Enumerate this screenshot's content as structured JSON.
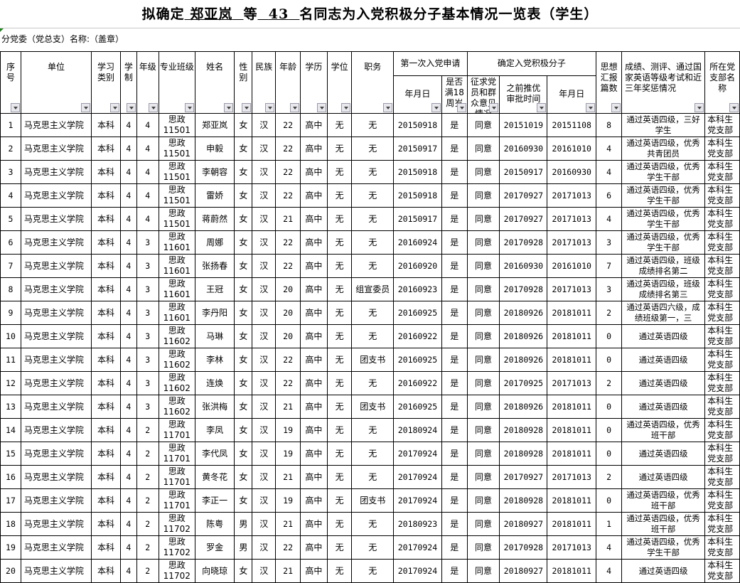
{
  "title": {
    "prefix": "拟确定",
    "name": "郑亚岚",
    "mid": "等",
    "count": "43",
    "suffix": "名同志为入党积极分子基本情况一览表（学生）"
  },
  "subheader": "分党委（党总支）名称:（盖章）",
  "headers": {
    "seq": "序号",
    "unit": "单位",
    "study_type": "学习类别",
    "duration": "学制",
    "grade": "年级",
    "class": "专业班级",
    "name": "姓名",
    "gender": "性别",
    "ethnicity": "民族",
    "age": "年龄",
    "education": "学历",
    "degree": "学位",
    "position": "职务",
    "first_app": "第一次入党申请",
    "first_app_date": "年月日",
    "over18": "是否满18周岁",
    "confirm": "确定入党积极分子",
    "opinion": "征求党员和群众意见情况",
    "prior_approval": "之前推优审批时间",
    "confirm_date": "年月日",
    "reports": "思想汇报篇数",
    "awards": "成绩、测评、通过国家英语等级考试和近三年奖惩情况",
    "branch": "所在党支部名称"
  },
  "rows": [
    [
      "1",
      "马克思主义学院",
      "本科",
      "4",
      "4",
      "思政11501",
      "郑亚岚",
      "女",
      "汉",
      "22",
      "高中",
      "无",
      "无",
      "20150918",
      "是",
      "同意",
      "20151019",
      "20151108",
      "8",
      "通过英语四级，三好学生",
      "本科生党支部"
    ],
    [
      "2",
      "马克思主义学院",
      "本科",
      "4",
      "4",
      "思政11501",
      "申毅",
      "女",
      "汉",
      "22",
      "高中",
      "无",
      "无",
      "20150917",
      "是",
      "同意",
      "20160930",
      "20161010",
      "4",
      "通过英语四级，优秀共青团员",
      "本科生党支部"
    ],
    [
      "3",
      "马克思主义学院",
      "本科",
      "4",
      "4",
      "思政11501",
      "李朝容",
      "女",
      "汉",
      "22",
      "高中",
      "无",
      "无",
      "20150918",
      "是",
      "同意",
      "20150917",
      "20160930",
      "4",
      "通过英语四级，优秀学生干部",
      "本科生党支部"
    ],
    [
      "4",
      "马克思主义学院",
      "本科",
      "4",
      "4",
      "思政11501",
      "雷娇",
      "女",
      "汉",
      "22",
      "高中",
      "无",
      "无",
      "20150918",
      "是",
      "同意",
      "20170927",
      "20171013",
      "6",
      "通过英语四级，优秀学生干部",
      "本科生党支部"
    ],
    [
      "5",
      "马克思主义学院",
      "本科",
      "4",
      "4",
      "思政11501",
      "蒋蔚然",
      "女",
      "汉",
      "21",
      "高中",
      "无",
      "无",
      "20150917",
      "是",
      "同意",
      "20170927",
      "20171013",
      "4",
      "通过英语四级，优秀学生干部",
      "本科生党支部"
    ],
    [
      "6",
      "马克思主义学院",
      "本科",
      "4",
      "3",
      "思政11601",
      "周娜",
      "女",
      "汉",
      "22",
      "高中",
      "无",
      "无",
      "20160924",
      "是",
      "同意",
      "20170928",
      "20171013",
      "3",
      "通过英语四级，优秀学生干部",
      "本科生党支部"
    ],
    [
      "7",
      "马克思主义学院",
      "本科",
      "4",
      "3",
      "思政11601",
      "张扬春",
      "女",
      "汉",
      "22",
      "高中",
      "无",
      "无",
      "20160920",
      "是",
      "同意",
      "20160930",
      "20161010",
      "7",
      "通过英语四级，班级成绩排名第二",
      "本科生党支部"
    ],
    [
      "8",
      "马克思主义学院",
      "本科",
      "4",
      "3",
      "思政11601",
      "王冠",
      "女",
      "汉",
      "20",
      "高中",
      "无",
      "组宣委员",
      "20160923",
      "是",
      "同意",
      "20170928",
      "20171013",
      "3",
      "通过英语四级，班级成绩排名第三",
      "本科生党支部"
    ],
    [
      "9",
      "马克思主义学院",
      "本科",
      "4",
      "3",
      "思政11601",
      "李丹阳",
      "女",
      "汉",
      "20",
      "高中",
      "无",
      "无",
      "20160925",
      "是",
      "同意",
      "20180926",
      "20181011",
      "2",
      "通过英语四六级，成绩班级第一，三",
      "本科生党支部"
    ],
    [
      "10",
      "马克思主义学院",
      "本科",
      "4",
      "3",
      "思政11602",
      "马琳",
      "女",
      "汉",
      "20",
      "高中",
      "无",
      "无",
      "20160922",
      "是",
      "同意",
      "20180926",
      "20181011",
      "0",
      "通过英语四级",
      "本科生党支部"
    ],
    [
      "11",
      "马克思主义学院",
      "本科",
      "4",
      "3",
      "思政11602",
      "李林",
      "女",
      "汉",
      "22",
      "高中",
      "无",
      "团支书",
      "20160925",
      "是",
      "同意",
      "20180926",
      "20181011",
      "0",
      "通过英语四级",
      "本科生党支部"
    ],
    [
      "12",
      "马克思主义学院",
      "本科",
      "4",
      "3",
      "思政11602",
      "连焕",
      "女",
      "汉",
      "22",
      "高中",
      "无",
      "无",
      "20160922",
      "是",
      "同意",
      "20170925",
      "20171013",
      "2",
      "通过英语四级",
      "本科生党支部"
    ],
    [
      "13",
      "马克思主义学院",
      "本科",
      "4",
      "3",
      "思政11602",
      "张洪梅",
      "女",
      "汉",
      "21",
      "高中",
      "无",
      "团支书",
      "20160925",
      "是",
      "同意",
      "20180926",
      "20181011",
      "0",
      "通过英语四级",
      "本科生党支部"
    ],
    [
      "14",
      "马克思主义学院",
      "本科",
      "4",
      "2",
      "思政11701",
      "李凤",
      "女",
      "汉",
      "19",
      "高中",
      "无",
      "无",
      "20180924",
      "是",
      "同意",
      "20180928",
      "20181011",
      "0",
      "通过英语四级，优秀班干部",
      "本科生党支部"
    ],
    [
      "15",
      "马克思主义学院",
      "本科",
      "4",
      "2",
      "思政11701",
      "李代凤",
      "女",
      "汉",
      "19",
      "高中",
      "无",
      "无",
      "20170924",
      "是",
      "同意",
      "20180928",
      "20181011",
      "0",
      "通过英语四级",
      "本科生党支部"
    ],
    [
      "16",
      "马克思主义学院",
      "本科",
      "4",
      "2",
      "思政11701",
      "黄冬花",
      "女",
      "汉",
      "21",
      "高中",
      "无",
      "无",
      "20170924",
      "是",
      "同意",
      "20170927",
      "20171013",
      "2",
      "通过英语四级",
      "本科生党支部"
    ],
    [
      "17",
      "马克思主义学院",
      "本科",
      "4",
      "2",
      "思政11701",
      "李正一",
      "女",
      "汉",
      "19",
      "高中",
      "无",
      "团支书",
      "20170924",
      "是",
      "同意",
      "20180928",
      "20181011",
      "0",
      "通过英语四级，优秀班干部",
      "本科生党支部"
    ],
    [
      "18",
      "马克思主义学院",
      "本科",
      "4",
      "2",
      "思政11702",
      "陈粤",
      "男",
      "汉",
      "21",
      "高中",
      "无",
      "无",
      "20180923",
      "是",
      "同意",
      "20180927",
      "20181011",
      "1",
      "通过英语四级，优秀班干部",
      "本科生党支部"
    ],
    [
      "19",
      "马克思主义学院",
      "本科",
      "4",
      "2",
      "思政11702",
      "罗金",
      "男",
      "汉",
      "22",
      "高中",
      "无",
      "无",
      "20170924",
      "是",
      "同意",
      "20170928",
      "20171013",
      "4",
      "通过英语四级，优秀学生干部",
      "本科生党支部"
    ],
    [
      "20",
      "马克思主义学院",
      "本科",
      "4",
      "2",
      "思政11702",
      "向晓琼",
      "女",
      "汉",
      "21",
      "高中",
      "无",
      "无",
      "20170924",
      "是",
      "同意",
      "20180927",
      "20181011",
      "4",
      "通过英语四级",
      "本科生党支部"
    ]
  ]
}
